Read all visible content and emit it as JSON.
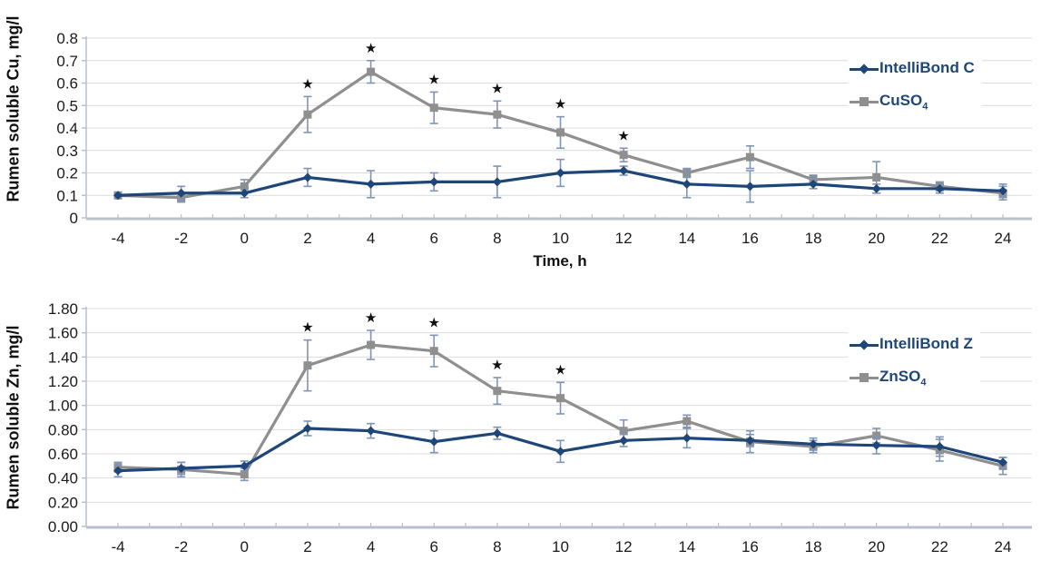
{
  "colors": {
    "series_blue": "#1f4679",
    "series_gray": "#8f8f8f",
    "error_bar": "#7e95b7",
    "grid": "#dcdcdc",
    "axis": "#b9c0cb",
    "text": "#1a1a1a",
    "legend_text": "#1f4679",
    "star": "#111111"
  },
  "chart_data": [
    {
      "type": "line",
      "id": "cu",
      "ylabel": "Rumen soluble Cu, mg/l",
      "xlabel": "Time, h",
      "ylim": [
        0,
        0.8
      ],
      "xlim": [
        -4,
        24
      ],
      "y_ticks": [
        0,
        0.1,
        0.2,
        0.3,
        0.4,
        0.5,
        0.6,
        0.7,
        0.8
      ],
      "y_tick_labels": [
        "0",
        "0.1",
        "0.2",
        "0.3",
        "0.4",
        "0.5",
        "0.6",
        "0.7",
        "0.8"
      ],
      "x_ticks": [
        -4,
        -2,
        0,
        2,
        4,
        6,
        8,
        10,
        12,
        14,
        16,
        18,
        20,
        22,
        24
      ],
      "x_tick_labels": [
        "-4",
        "-2",
        "0",
        "2",
        "4",
        "6",
        "8",
        "10",
        "12",
        "14",
        "16",
        "18",
        "20",
        "22",
        "24"
      ],
      "x": [
        -4,
        -2,
        0,
        2,
        4,
        6,
        8,
        10,
        12,
        14,
        16,
        18,
        20,
        22,
        24
      ],
      "grid": true,
      "legend_position": "top-right",
      "series": [
        {
          "name": "IntelliBond C",
          "label": "IntelliBond C",
          "label_sub": "",
          "marker": "diamond",
          "color_key": "series_blue",
          "error_color_key": "error_bar",
          "values": [
            0.1,
            0.11,
            0.11,
            0.18,
            0.15,
            0.16,
            0.16,
            0.2,
            0.21,
            0.15,
            0.14,
            0.15,
            0.13,
            0.13,
            0.12
          ],
          "errors": [
            0.01,
            0.03,
            0.02,
            0.04,
            0.06,
            0.04,
            0.07,
            0.06,
            0.02,
            0.06,
            0.07,
            0.02,
            0.02,
            0.02,
            0.03
          ]
        },
        {
          "name": "CuSO4",
          "label": "CuSO",
          "label_sub": "4",
          "marker": "square",
          "color_key": "series_gray",
          "error_color_key": "error_bar",
          "values": [
            0.1,
            0.09,
            0.14,
            0.46,
            0.65,
            0.49,
            0.46,
            0.38,
            0.28,
            0.2,
            0.27,
            0.17,
            0.18,
            0.14,
            0.11
          ],
          "errors": [
            0.01,
            0.02,
            0.03,
            0.08,
            0.05,
            0.07,
            0.06,
            0.07,
            0.03,
            0.02,
            0.05,
            0.02,
            0.07,
            0.02,
            0.03
          ]
        }
      ],
      "significance": {
        "symbol": "★",
        "x": [
          2,
          4,
          6,
          8,
          10,
          12
        ]
      }
    },
    {
      "type": "line",
      "id": "zn",
      "ylabel": "Rumen soluble Zn, mg/l",
      "xlabel": "",
      "ylim": [
        0,
        1.8
      ],
      "xlim": [
        -4,
        24
      ],
      "y_ticks": [
        0,
        0.2,
        0.4,
        0.6,
        0.8,
        1.0,
        1.2,
        1.4,
        1.6,
        1.8
      ],
      "y_tick_labels": [
        "0.00",
        "0.20",
        "0.40",
        "0.60",
        "0.80",
        "1.00",
        "1.20",
        "1.40",
        "1.60",
        "1.80"
      ],
      "x_ticks": [
        -4,
        -2,
        0,
        2,
        4,
        6,
        8,
        10,
        12,
        14,
        16,
        18,
        20,
        22,
        24
      ],
      "x_tick_labels": [
        "-4",
        "-2",
        "0",
        "2",
        "4",
        "6",
        "8",
        "10",
        "12",
        "14",
        "16",
        "18",
        "20",
        "22",
        "24"
      ],
      "x": [
        -4,
        -2,
        0,
        2,
        4,
        6,
        8,
        10,
        12,
        14,
        16,
        18,
        20,
        22,
        24
      ],
      "grid": true,
      "legend_position": "top-right",
      "series": [
        {
          "name": "IntelliBond Z",
          "label": "IntelliBond Z",
          "label_sub": "",
          "marker": "diamond",
          "color_key": "series_blue",
          "error_color_key": "error_bar",
          "values": [
            0.46,
            0.48,
            0.5,
            0.81,
            0.79,
            0.7,
            0.77,
            0.62,
            0.71,
            0.73,
            0.71,
            0.68,
            0.67,
            0.66,
            0.53
          ],
          "errors": [
            0.05,
            0.05,
            0.04,
            0.06,
            0.06,
            0.09,
            0.05,
            0.09,
            0.05,
            0.08,
            0.05,
            0.05,
            0.07,
            0.08,
            0.04
          ]
        },
        {
          "name": "ZnSO4",
          "label": "ZnSO",
          "label_sub": "4",
          "marker": "square",
          "color_key": "series_gray",
          "error_color_key": "error_bar",
          "values": [
            0.49,
            0.47,
            0.43,
            1.33,
            1.5,
            1.45,
            1.12,
            1.06,
            0.79,
            0.87,
            0.7,
            0.66,
            0.75,
            0.63,
            0.5
          ],
          "errors": [
            0.04,
            0.06,
            0.05,
            0.21,
            0.12,
            0.13,
            0.11,
            0.13,
            0.09,
            0.05,
            0.09,
            0.05,
            0.06,
            0.09,
            0.07
          ]
        }
      ],
      "significance": {
        "symbol": "★",
        "x": [
          2,
          4,
          6,
          8,
          10
        ]
      }
    }
  ]
}
